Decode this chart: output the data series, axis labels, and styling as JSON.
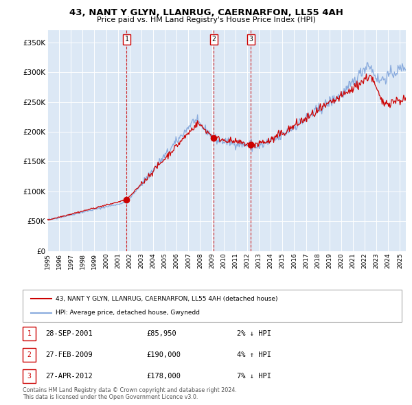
{
  "title": "43, NANT Y GLYN, LLANRUG, CAERNARFON, LL55 4AH",
  "subtitle": "Price paid vs. HM Land Registry's House Price Index (HPI)",
  "ylabel_values": [
    "£0",
    "£50K",
    "£100K",
    "£150K",
    "£200K",
    "£250K",
    "£300K",
    "£350K"
  ],
  "yticks": [
    0,
    50000,
    100000,
    150000,
    200000,
    250000,
    300000,
    350000
  ],
  "ylim": [
    0,
    370000
  ],
  "xlim_start": 1995.0,
  "xlim_end": 2025.5,
  "xticks": [
    1995,
    1996,
    1997,
    1998,
    1999,
    2000,
    2001,
    2002,
    2003,
    2004,
    2005,
    2006,
    2007,
    2008,
    2009,
    2010,
    2011,
    2012,
    2013,
    2014,
    2015,
    2016,
    2017,
    2018,
    2019,
    2020,
    2021,
    2022,
    2023,
    2024,
    2025
  ],
  "sale_dates": [
    2001.747,
    2009.16,
    2012.32
  ],
  "sale_prices": [
    85950,
    190000,
    178000
  ],
  "sale_labels": [
    "1",
    "2",
    "3"
  ],
  "sale_dot_color": "#cc0000",
  "sale_line_color": "#cc0000",
  "hpi_line_color": "#88aadd",
  "background_color": "#dce8f5",
  "grid_color": "#ffffff",
  "legend_label_red": "43, NANT Y GLYN, LLANRUG, CAERNARFON, LL55 4AH (detached house)",
  "legend_label_blue": "HPI: Average price, detached house, Gwynedd",
  "table_rows": [
    {
      "num": "1",
      "date": "28-SEP-2001",
      "price": "£85,950",
      "pct": "2% ↓ HPI"
    },
    {
      "num": "2",
      "date": "27-FEB-2009",
      "price": "£190,000",
      "pct": "4% ↑ HPI"
    },
    {
      "num": "3",
      "date": "27-APR-2012",
      "price": "£178,000",
      "pct": "7% ↓ HPI"
    }
  ],
  "footer": "Contains HM Land Registry data © Crown copyright and database right 2024.\nThis data is licensed under the Open Government Licence v3.0."
}
